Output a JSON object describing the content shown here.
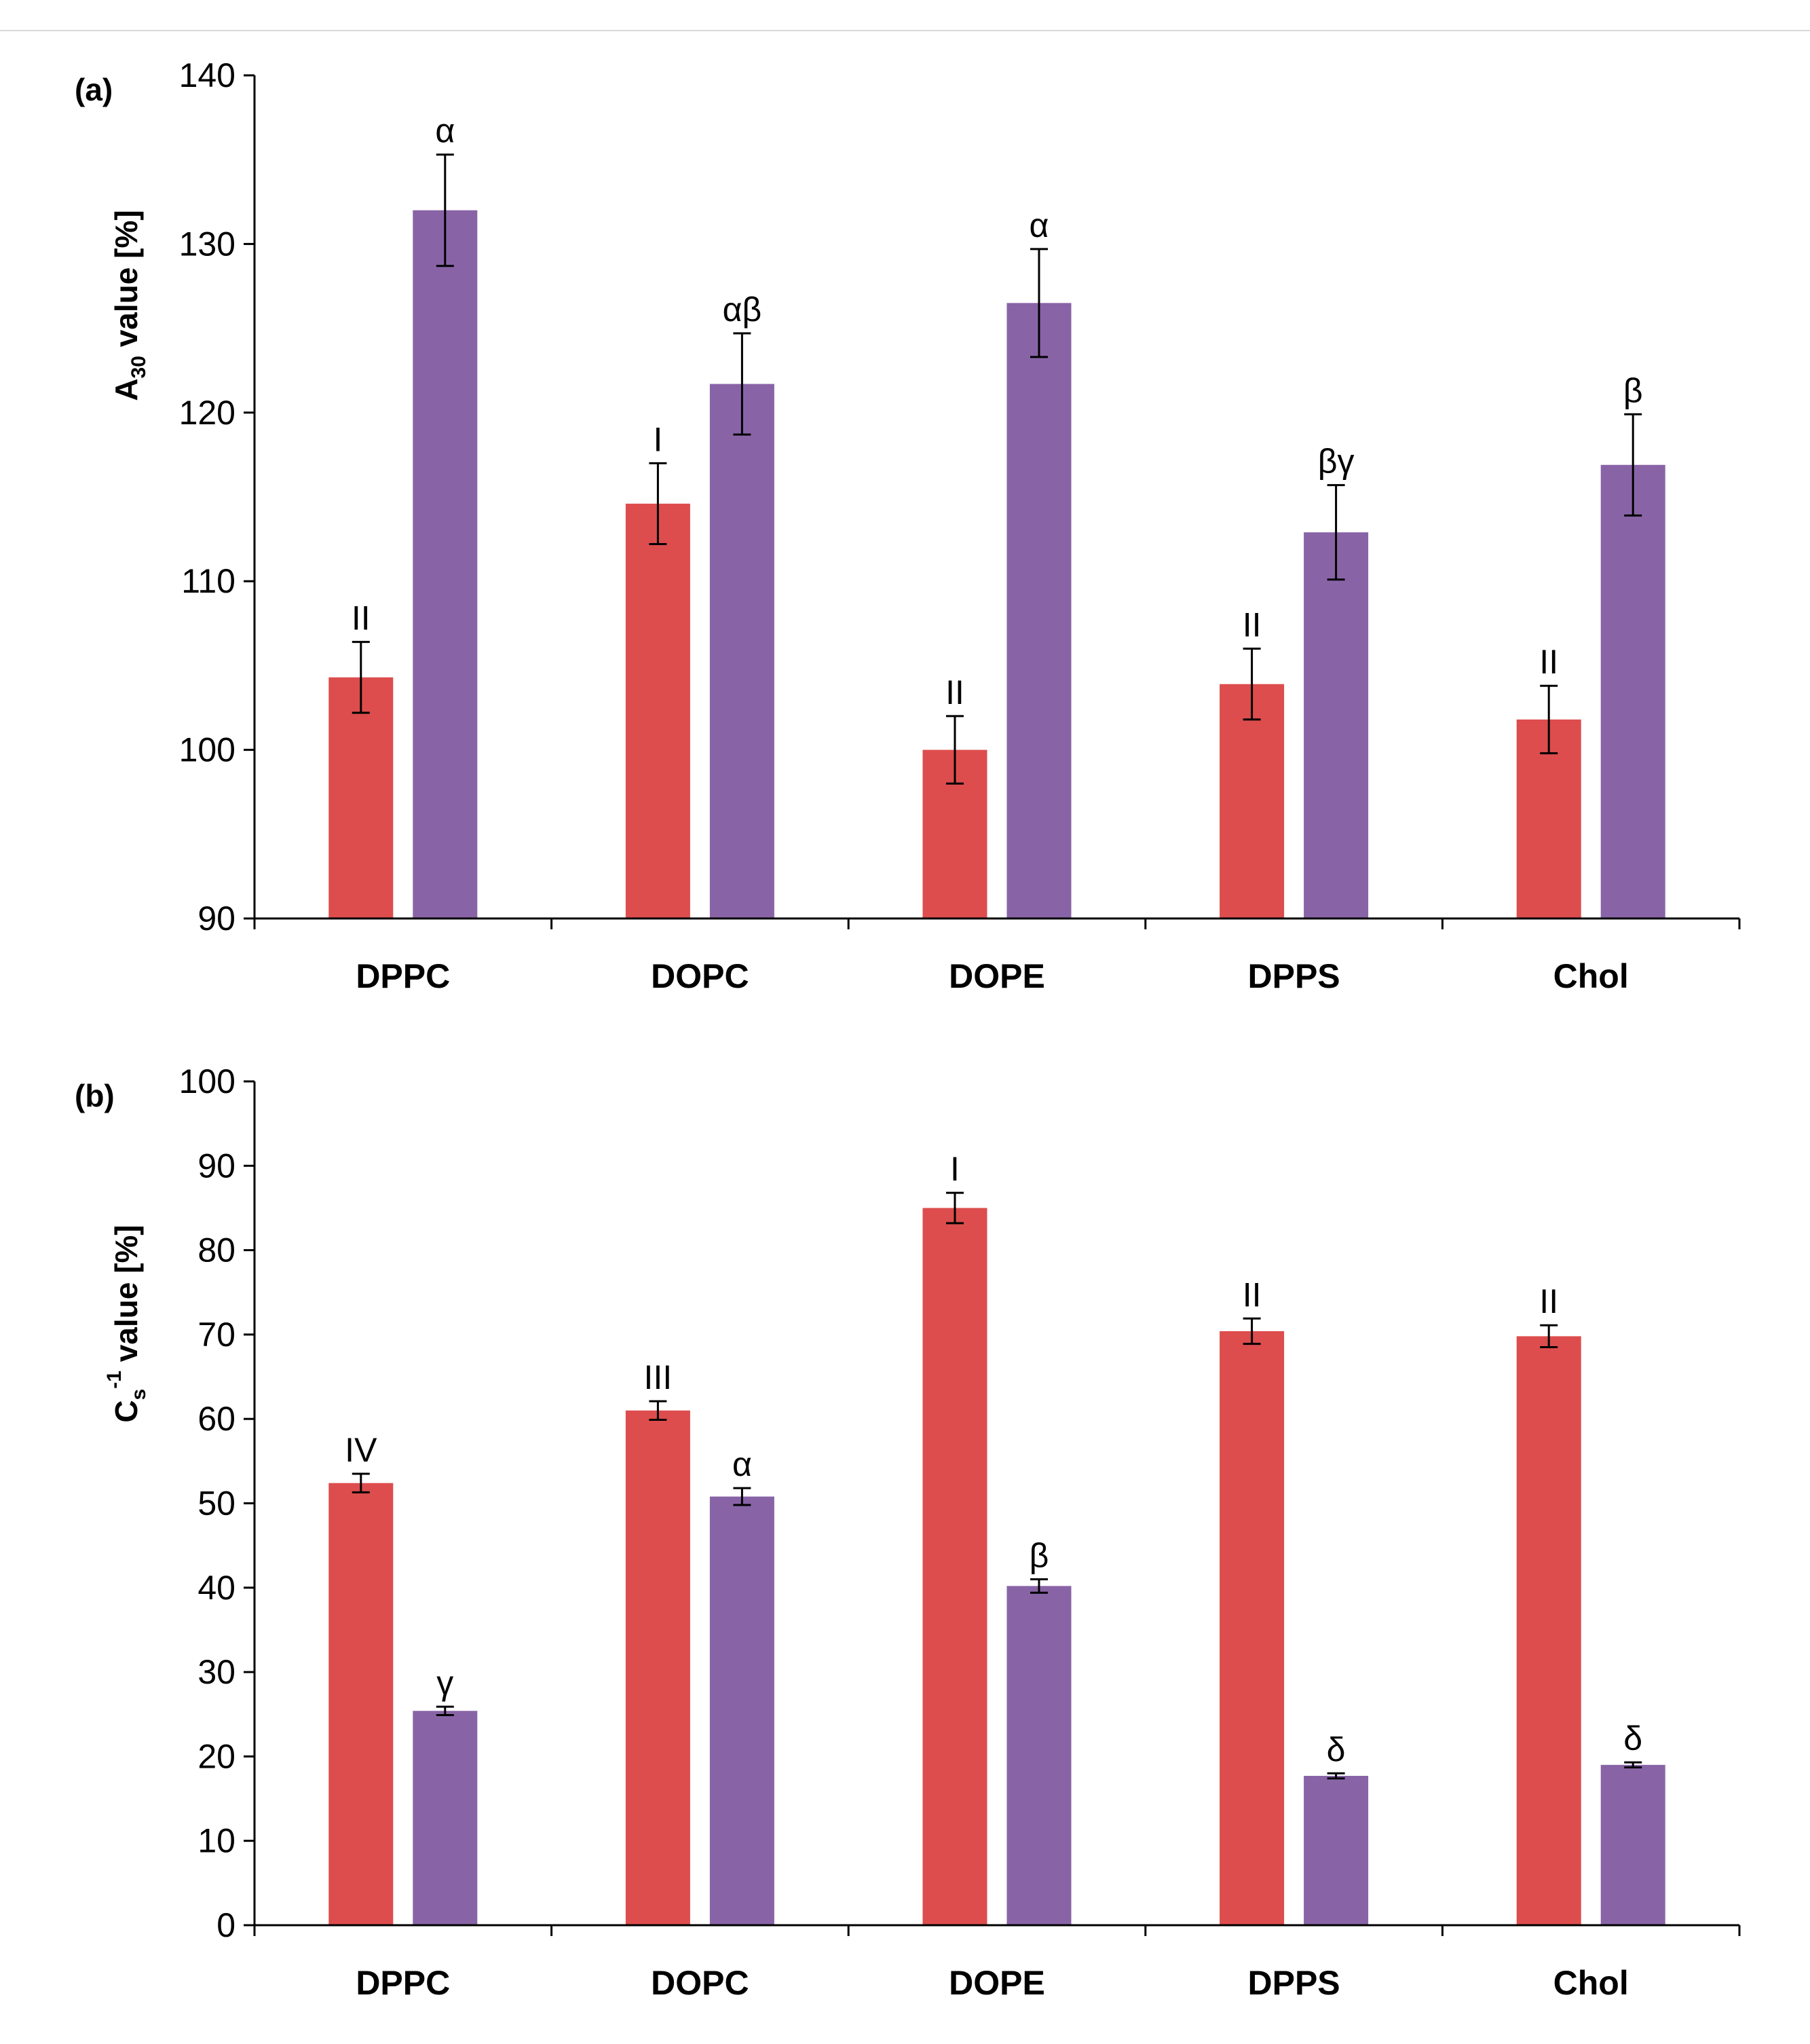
{
  "colors": {
    "series1": "#dd4d4d",
    "series2": "#8864a6",
    "axis": "#000000",
    "error_bar": "#000000",
    "rule": "#d9d9d9"
  },
  "chart_data": [
    {
      "type": "bar",
      "panel_label": "(a)",
      "ylabel": "A30 value [%]",
      "ylabel_parts": {
        "main": "A",
        "sub": "30",
        "rest": " value [%]"
      },
      "ylim": [
        90,
        140
      ],
      "yticks": [
        90,
        100,
        110,
        120,
        130,
        140
      ],
      "grid": false,
      "categories": [
        "DPPC",
        "DOPC",
        "DOPE",
        "DPPS",
        "Chol"
      ],
      "series": [
        {
          "values": [
            104.3,
            114.6,
            100.0,
            103.9,
            101.8
          ],
          "errors": [
            2.1,
            2.4,
            2.0,
            2.1,
            2.0
          ],
          "annotations": [
            "II",
            "I",
            "II",
            "II",
            "II"
          ]
        },
        {
          "values": [
            132.0,
            121.7,
            126.5,
            112.9,
            116.9
          ],
          "errors": [
            3.3,
            3.0,
            3.2,
            2.8,
            3.0
          ],
          "annotations": [
            "α",
            "αβ",
            "α",
            "βγ",
            "β"
          ]
        }
      ]
    },
    {
      "type": "bar",
      "panel_label": "(b)",
      "ylabel": "Cs-1 value [%]",
      "ylabel_parts": {
        "main": "C",
        "sub": "s",
        "sup": "-1",
        "rest": " value [%]"
      },
      "ylim": [
        0,
        100
      ],
      "yticks": [
        0,
        10,
        20,
        30,
        40,
        50,
        60,
        70,
        80,
        90,
        100
      ],
      "grid": false,
      "categories": [
        "DPPC",
        "DOPC",
        "DOPE",
        "DPPS",
        "Chol"
      ],
      "series": [
        {
          "values": [
            52.4,
            61.0,
            85.0,
            70.4,
            69.8
          ],
          "errors": [
            1.1,
            1.1,
            1.8,
            1.5,
            1.3
          ],
          "annotations": [
            "IV",
            "III",
            "I",
            "II",
            "II"
          ]
        },
        {
          "values": [
            25.4,
            50.8,
            40.2,
            17.7,
            19.0
          ],
          "errors": [
            0.5,
            1.0,
            0.8,
            0.3,
            0.3
          ],
          "annotations": [
            "γ",
            "α",
            "β",
            "δ",
            "δ"
          ]
        }
      ]
    }
  ]
}
